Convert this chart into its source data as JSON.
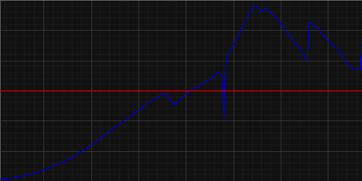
{
  "xlim": [
    1827,
    2018
  ],
  "ylim": [
    0,
    150000
  ],
  "red_line_y": 75000,
  "background_color": "#111111",
  "plot_bg_color": "#111111",
  "grid_major_color": "#444444",
  "grid_minor_color": "#333333",
  "line_color": "#0000cc",
  "red_color": "#cc0000",
  "line_width": 0.8,
  "data": [
    [
      1827,
      1300
    ],
    [
      1830,
      2000
    ],
    [
      1835,
      3500
    ],
    [
      1840,
      5000
    ],
    [
      1845,
      7000
    ],
    [
      1850,
      9500
    ],
    [
      1855,
      13000
    ],
    [
      1860,
      16000
    ],
    [
      1865,
      20000
    ],
    [
      1870,
      25000
    ],
    [
      1875,
      30000
    ],
    [
      1880,
      36000
    ],
    [
      1885,
      42000
    ],
    [
      1890,
      48000
    ],
    [
      1895,
      53000
    ],
    [
      1900,
      59000
    ],
    [
      1905,
      65000
    ],
    [
      1910,
      70000
    ],
    [
      1914,
      73000
    ],
    [
      1919,
      63000
    ],
    [
      1920,
      65000
    ],
    [
      1925,
      72000
    ],
    [
      1930,
      78000
    ],
    [
      1935,
      82000
    ],
    [
      1939,
      86000
    ],
    [
      1940,
      88000
    ],
    [
      1942,
      91000
    ],
    [
      1944,
      87000
    ],
    [
      1945,
      52000
    ],
    [
      1946,
      96000
    ],
    [
      1947,
      105000
    ],
    [
      1950,
      112000
    ],
    [
      1955,
      129000
    ],
    [
      1960,
      143000
    ],
    [
      1961,
      145500
    ],
    [
      1963,
      144000
    ],
    [
      1965,
      141000
    ],
    [
      1967,
      143000
    ],
    [
      1969,
      141000
    ],
    [
      1971,
      138000
    ],
    [
      1973,
      135000
    ],
    [
      1975,
      131000
    ],
    [
      1977,
      126000
    ],
    [
      1979,
      122000
    ],
    [
      1981,
      118000
    ],
    [
      1983,
      114000
    ],
    [
      1985,
      110000
    ],
    [
      1987,
      105000
    ],
    [
      1989,
      101000
    ],
    [
      1990,
      132000
    ],
    [
      1991,
      131000
    ],
    [
      1993,
      128000
    ],
    [
      1995,
      126000
    ],
    [
      1997,
      122000
    ],
    [
      1999,
      118000
    ],
    [
      2001,
      115000
    ],
    [
      2003,
      112000
    ],
    [
      2005,
      108000
    ],
    [
      2007,
      104000
    ],
    [
      2009,
      100000
    ],
    [
      2011,
      96000
    ],
    [
      2013,
      93000
    ],
    [
      2015,
      93000
    ],
    [
      2017,
      93000
    ],
    [
      2018,
      113000
    ]
  ]
}
